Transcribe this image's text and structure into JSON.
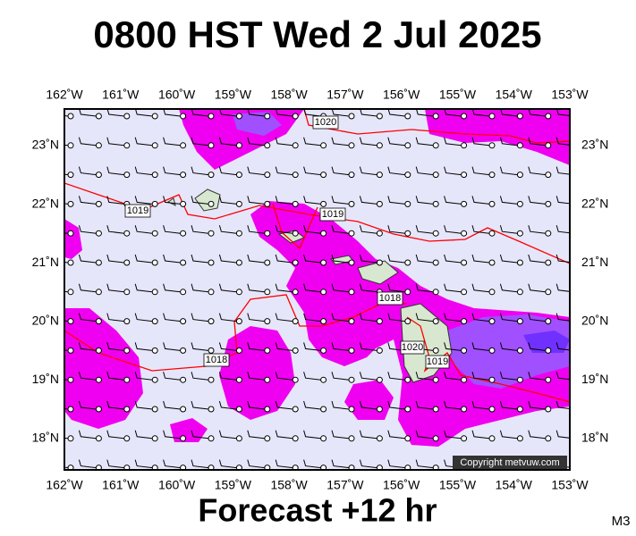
{
  "header": {
    "title": "0800 HST Wed 2 Jul 2025"
  },
  "map": {
    "lon_labels": [
      "162˚W",
      "161˚W",
      "160˚W",
      "159˚W",
      "158˚W",
      "157˚W",
      "156˚W",
      "155˚W",
      "154˚W",
      "153˚W"
    ],
    "lat_labels": [
      "23˚N",
      "22˚N",
      "21˚N",
      "20˚N",
      "19˚N",
      "18˚N"
    ],
    "isobar_labels": [
      "1020",
      "1019",
      "1019",
      "1018",
      "1018",
      "1020",
      "1019"
    ],
    "copyright": "Copyright metvuw.com"
  },
  "footer": {
    "caption": "Forecast +12 hr",
    "model": "M3"
  }
}
